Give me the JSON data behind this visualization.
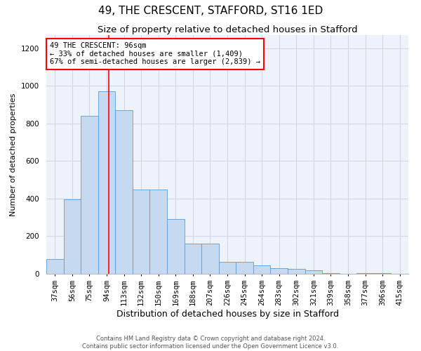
{
  "title": "49, THE CRESCENT, STAFFORD, ST16 1ED",
  "subtitle": "Size of property relative to detached houses in Stafford",
  "xlabel": "Distribution of detached houses by size in Stafford",
  "ylabel": "Number of detached properties",
  "categories": [
    "37sqm",
    "56sqm",
    "75sqm",
    "94sqm",
    "113sqm",
    "132sqm",
    "150sqm",
    "169sqm",
    "188sqm",
    "207sqm",
    "226sqm",
    "245sqm",
    "264sqm",
    "283sqm",
    "302sqm",
    "321sqm",
    "339sqm",
    "358sqm",
    "377sqm",
    "396sqm",
    "415sqm"
  ],
  "values": [
    80,
    395,
    840,
    970,
    870,
    450,
    450,
    290,
    160,
    160,
    65,
    65,
    45,
    30,
    25,
    20,
    5,
    0,
    5,
    5,
    0
  ],
  "bar_color": "#c5d9f0",
  "bar_edge_color": "#5b9bd5",
  "annotation_text": "49 THE CRESCENT: 96sqm\n← 33% of detached houses are smaller (1,409)\n67% of semi-detached houses are larger (2,839) →",
  "annotation_box_color": "white",
  "annotation_box_edge_color": "red",
  "ylim": [
    0,
    1270
  ],
  "yticks": [
    0,
    200,
    400,
    600,
    800,
    1000,
    1200
  ],
  "grid_color": "#d0d8e8",
  "bg_color": "#eef2fa",
  "title_fontsize": 11,
  "subtitle_fontsize": 9.5,
  "xlabel_fontsize": 9,
  "ylabel_fontsize": 8,
  "tick_fontsize": 7.5,
  "ann_fontsize": 7.5,
  "footer": "Contains HM Land Registry data © Crown copyright and database right 2024.\nContains public sector information licensed under the Open Government Licence v3.0."
}
